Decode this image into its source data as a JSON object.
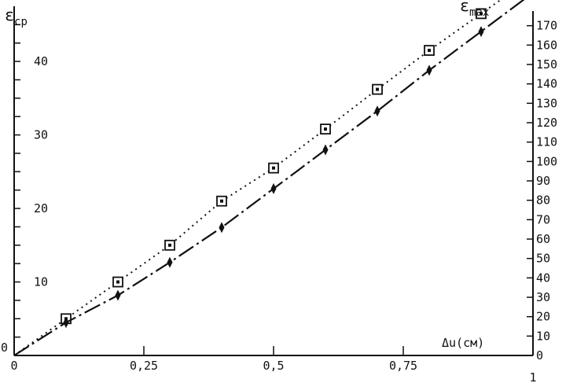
{
  "chart_data": {
    "type": "line",
    "left_axis_title": "ε",
    "left_axis_title_sub": "cp",
    "right_axis_title": "ε",
    "right_axis_title_sub": "max",
    "xlabel": "Δu(см)",
    "origin_label_left": "0",
    "x_ticks": [
      {
        "value": 0,
        "label": "0"
      },
      {
        "value": 0.25,
        "label": "0,25"
      },
      {
        "value": 0.5,
        "label": "0,5"
      },
      {
        "value": 0.75,
        "label": "0,75"
      },
      {
        "value": 1,
        "label": "1"
      }
    ],
    "left_ticks": [
      {
        "value": 10,
        "label": "10"
      },
      {
        "value": 20,
        "label": "20"
      },
      {
        "value": 30,
        "label": "30"
      },
      {
        "value": 40,
        "label": "40"
      }
    ],
    "right_ticks": [
      "0",
      "10",
      "20",
      "30",
      "40",
      "50",
      "60",
      "70",
      "80",
      "90",
      "100",
      "110",
      "120",
      "130",
      "140",
      "150",
      "160",
      "170"
    ],
    "xlim": [
      0,
      1
    ],
    "ylim_left": [
      0,
      47.5
    ],
    "ylim_right": [
      0,
      180
    ],
    "series": [
      {
        "marker": "square",
        "line": "dotted",
        "axis": "left",
        "x": [
          0.1,
          0.2,
          0.3,
          0.4,
          0.5,
          0.6,
          0.7,
          0.8,
          0.9
        ],
        "y": [
          5.0,
          10.0,
          15.0,
          21.0,
          25.5,
          30.8,
          36.2,
          41.5,
          46.5
        ]
      },
      {
        "marker": "diamond",
        "line": "dash-dot",
        "axis": "right",
        "x": [
          0.1,
          0.2,
          0.3,
          0.4,
          0.5,
          0.6,
          0.7,
          0.8,
          0.9
        ],
        "y": [
          17,
          31,
          48,
          66,
          86,
          106,
          126,
          147,
          167
        ]
      }
    ]
  }
}
